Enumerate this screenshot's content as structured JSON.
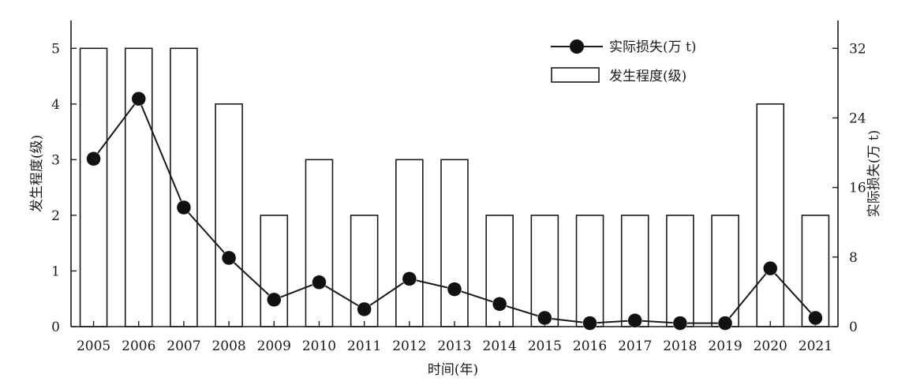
{
  "chart_data": {
    "type": "bar",
    "categories": [
      "2005",
      "2006",
      "2007",
      "2008",
      "2009",
      "2010",
      "2011",
      "2012",
      "2013",
      "2014",
      "2015",
      "2016",
      "2017",
      "2018",
      "2019",
      "2020",
      "2021"
    ],
    "series": [
      {
        "name": "发生程度(级)",
        "type": "bar",
        "axis": "left",
        "values": [
          5,
          5,
          5,
          4,
          2,
          3,
          2,
          3,
          3,
          2,
          2,
          2,
          2,
          2,
          2,
          4,
          2
        ]
      },
      {
        "name": "实际损失(万 t)",
        "type": "line",
        "axis": "right",
        "values": [
          19.3,
          26.2,
          13.7,
          7.9,
          3.1,
          5.1,
          2.0,
          5.5,
          4.3,
          2.6,
          1.0,
          0.4,
          0.7,
          0.4,
          0.4,
          6.7,
          1.0
        ]
      }
    ],
    "xlabel": "时间(年)",
    "ylabel": "发生程度(级)",
    "ylabel_right": "实际损失(万 t)",
    "ylim": [
      0,
      5.5
    ],
    "ylim_right": [
      0,
      35.2
    ],
    "yticks": [
      0,
      1,
      2,
      3,
      4,
      5
    ],
    "yticks_right": [
      0,
      8,
      16,
      24,
      32
    ],
    "legend": "top-right",
    "grid": false
  }
}
